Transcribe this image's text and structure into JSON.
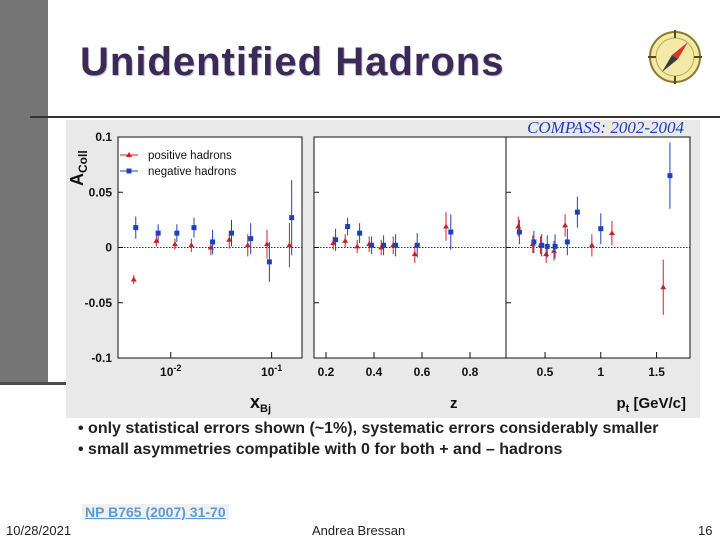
{
  "slide": {
    "title": "Unidentified Hadrons",
    "notes": [
      "• only statistical errors shown (~1%), systematic errors considerably smaller",
      "• small asymmetries compatible with 0 for both + and – hadrons"
    ],
    "reference": "NP B765 (2007) 31-70",
    "footer": {
      "date": "10/28/2021",
      "author": "Andrea Bressan",
      "page": "16"
    },
    "logo_icon": "compass-needle-icon"
  },
  "chart_data": {
    "type": "scatter",
    "title": "COMPASS: 2002-2004",
    "ylabel": "A_Coll",
    "ylabel_main": "A",
    "ylabel_sub": "Coll",
    "ylim": [
      -0.1,
      0.1
    ],
    "yticks": [
      "0.1",
      "0.05",
      "0",
      "-0.05",
      "-0.1"
    ],
    "legend": {
      "placement": "top-left",
      "entries": [
        "positive hadrons",
        "negative hadrons"
      ]
    },
    "colors": {
      "positive": "#cc2222",
      "negative": "#1f3fbf"
    },
    "panels": [
      {
        "xlabel": "x",
        "xlabel_sub": "Bj",
        "xscale": "log",
        "xlim": [
          0.003,
          0.2
        ],
        "xticks": [
          "10",
          "10"
        ],
        "xtick_exps": [
          "-2",
          "-1"
        ],
        "series": [
          {
            "name": "positive hadrons",
            "x": [
              0.0043,
              0.0072,
              0.011,
              0.016,
              0.025,
              0.038,
              0.058,
              0.09,
              0.15
            ],
            "y": [
              -0.029,
              0.006,
              0.003,
              0.002,
              0.0,
              0.007,
              0.002,
              0.003,
              0.002
            ],
            "err": [
              0.004,
              0.005,
              0.005,
              0.006,
              0.007,
              0.008,
              0.01,
              0.013,
              0.02
            ]
          },
          {
            "name": "negative hadrons",
            "x": [
              0.0045,
              0.0075,
              0.0115,
              0.017,
              0.026,
              0.04,
              0.062,
              0.095,
              0.158
            ],
            "y": [
              0.018,
              0.013,
              0.013,
              0.018,
              0.005,
              0.013,
              0.008,
              -0.013,
              0.027
            ],
            "err": [
              0.01,
              0.008,
              0.008,
              0.009,
              0.011,
              0.012,
              0.014,
              0.018,
              0.034
            ]
          }
        ]
      },
      {
        "xlabel": "z",
        "xscale": "linear",
        "xlim": [
          0.15,
          0.95
        ],
        "xticks": [
          "0.2",
          "0.4",
          "0.6",
          "0.8"
        ],
        "series": [
          {
            "name": "positive hadrons",
            "x": [
              0.23,
              0.28,
              0.33,
              0.38,
              0.43,
              0.48,
              0.57,
              0.7
            ],
            "y": [
              0.004,
              0.006,
              0.001,
              0.003,
              0.0,
              0.002,
              -0.006,
              0.019
            ],
            "err": [
              0.006,
              0.006,
              0.006,
              0.007,
              0.007,
              0.008,
              0.008,
              0.013
            ]
          },
          {
            "name": "negative hadrons",
            "x": [
              0.24,
              0.29,
              0.34,
              0.39,
              0.44,
              0.49,
              0.58,
              0.72
            ],
            "y": [
              0.007,
              0.019,
              0.013,
              0.002,
              0.002,
              0.002,
              0.002,
              0.014
            ],
            "err": [
              0.01,
              0.008,
              0.009,
              0.008,
              0.009,
              0.01,
              0.011,
              0.016
            ]
          }
        ]
      },
      {
        "xlabel": "p",
        "xlabel_sub": "t",
        "xlabel_unit": " [GeV/c]",
        "xscale": "linear",
        "xlim": [
          0.15,
          1.8
        ],
        "xticks": [
          "0.5",
          "1",
          "1.5"
        ],
        "series": [
          {
            "name": "positive hadrons",
            "x": [
              0.26,
              0.39,
              0.46,
              0.51,
              0.58,
              0.68,
              0.92,
              1.1,
              1.56
            ],
            "y": [
              0.019,
              0.003,
              0.002,
              -0.006,
              -0.003,
              0.02,
              0.002,
              0.013,
              -0.036
            ],
            "err": [
              0.009,
              0.008,
              0.008,
              0.008,
              0.009,
              0.01,
              0.01,
              0.011,
              0.025
            ]
          },
          {
            "name": "negative hadrons",
            "x": [
              0.27,
              0.4,
              0.47,
              0.52,
              0.59,
              0.7,
              0.79,
              1.0,
              1.62
            ],
            "y": [
              0.014,
              0.005,
              0.002,
              0.001,
              0.001,
              0.005,
              0.032,
              0.017,
              0.065
            ],
            "err": [
              0.011,
              0.01,
              0.01,
              0.01,
              0.011,
              0.012,
              0.014,
              0.014,
              0.03
            ]
          }
        ]
      }
    ]
  }
}
